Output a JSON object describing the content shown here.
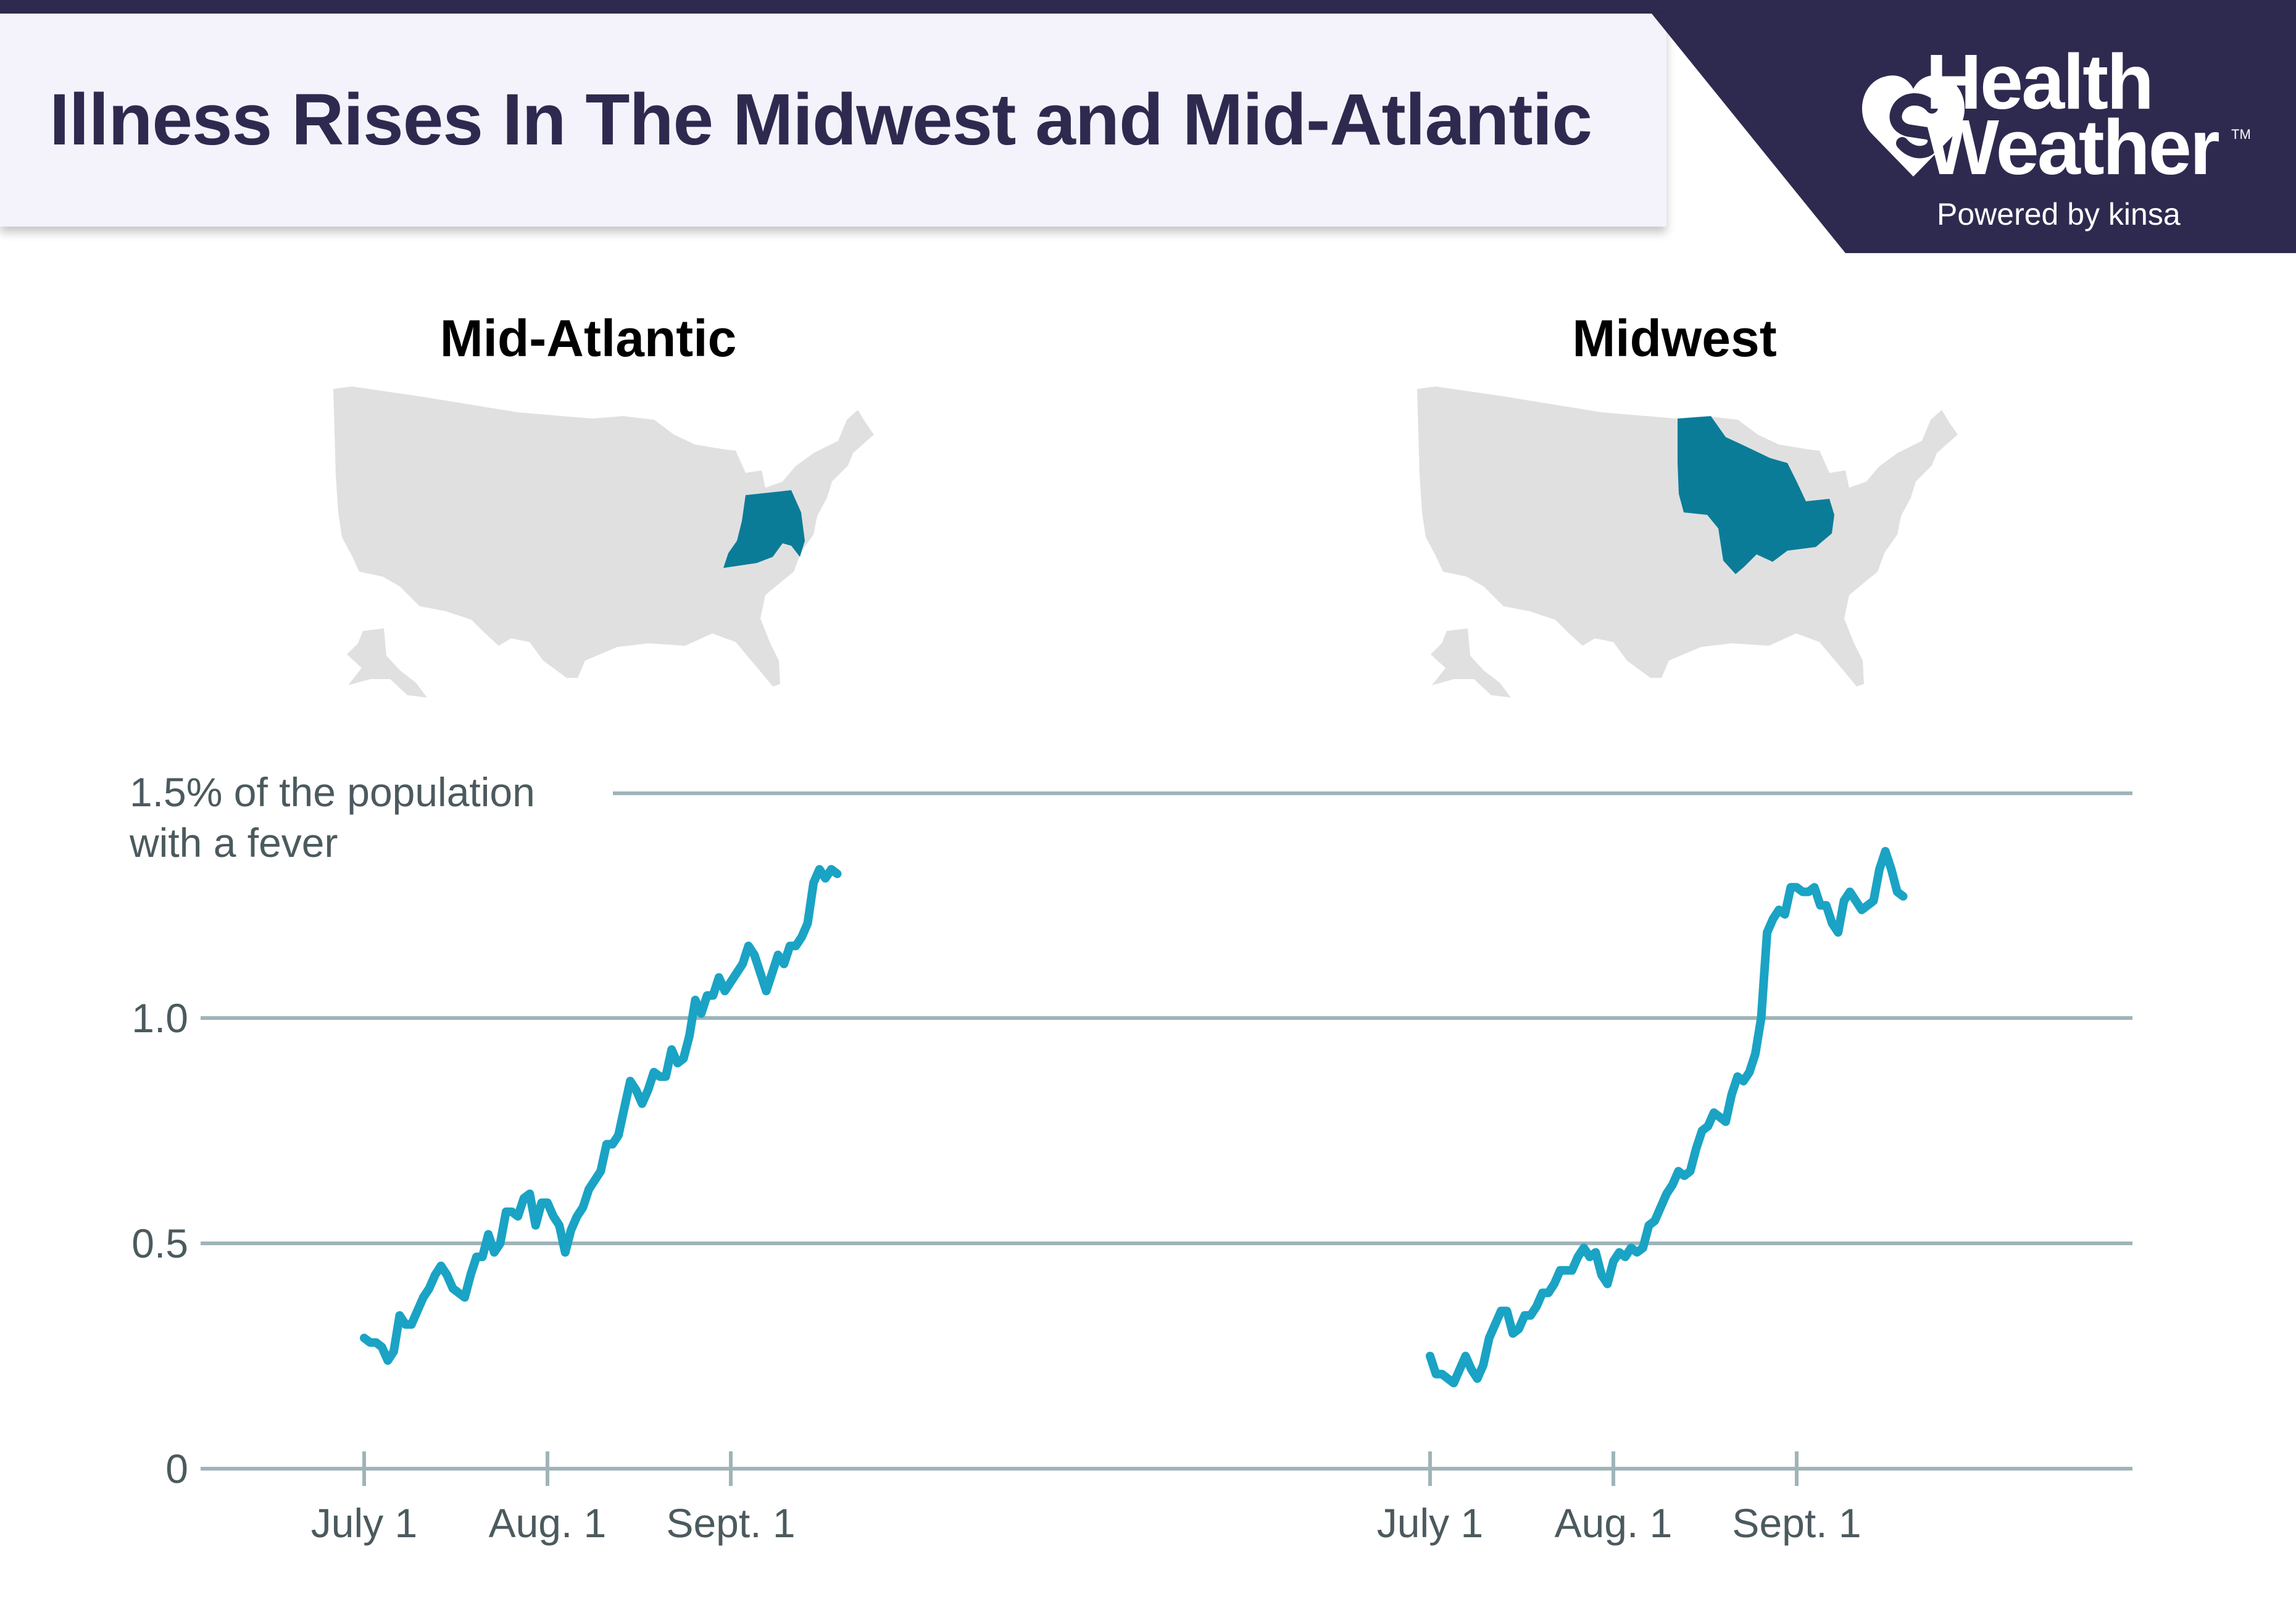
{
  "header": {
    "title": "Illness Rises In The Midwest and Mid-Atlantic",
    "brand_line1": "Health",
    "brand_line2": "Weather",
    "brand_tm": "TM",
    "brand_powered": "Powered by kinsa"
  },
  "colors": {
    "header_dark": "#2e2a4f",
    "banner_bg": "#f4f3fb",
    "line": "#1aa3c4",
    "highlight": "#0b7c98",
    "map_gray": "#e0e0e0",
    "grid": "#9fb4b9",
    "axis_text": "#4b5a5e"
  },
  "icons": {
    "brand": "heart-logo-icon",
    "maps": "us-map-icon"
  },
  "chart_data": [
    {
      "type": "line",
      "title": "Mid-Atlantic",
      "highlighted_region": "Mid-Atlantic",
      "ylim": [
        0,
        1.5
      ],
      "yticks": [
        {
          "value": 0,
          "label": "0"
        },
        {
          "value": 0.5,
          "label": "0.5"
        },
        {
          "value": 1.0,
          "label": "1.0"
        }
      ],
      "ytop_label": [
        "1.5% of the population",
        "with a fever"
      ],
      "xticks": [
        {
          "day": 0,
          "label": "July 1"
        },
        {
          "day": 31,
          "label": "Aug. 1"
        },
        {
          "day": 62,
          "label": "Sept. 1"
        }
      ],
      "series": [
        {
          "values": [
            [
              0,
              0.29
            ],
            [
              1,
              0.28
            ],
            [
              2,
              0.28
            ],
            [
              3,
              0.27
            ],
            [
              4,
              0.24
            ],
            [
              5,
              0.26
            ],
            [
              6,
              0.34
            ],
            [
              7,
              0.32
            ],
            [
              8,
              0.32
            ],
            [
              9,
              0.35
            ],
            [
              10,
              0.38
            ],
            [
              11,
              0.4
            ],
            [
              12,
              0.43
            ],
            [
              13,
              0.45
            ],
            [
              14,
              0.43
            ],
            [
              15,
              0.4
            ],
            [
              16,
              0.39
            ],
            [
              17,
              0.38
            ],
            [
              18,
              0.43
            ],
            [
              19,
              0.47
            ],
            [
              20,
              0.47
            ],
            [
              21,
              0.52
            ],
            [
              22,
              0.48
            ],
            [
              23,
              0.5
            ],
            [
              24,
              0.57
            ],
            [
              25,
              0.57
            ],
            [
              26,
              0.56
            ],
            [
              27,
              0.6
            ],
            [
              28,
              0.61
            ],
            [
              29,
              0.54
            ],
            [
              30,
              0.59
            ],
            [
              31,
              0.59
            ],
            [
              32,
              0.56
            ],
            [
              33,
              0.54
            ],
            [
              34,
              0.48
            ],
            [
              35,
              0.53
            ],
            [
              36,
              0.56
            ],
            [
              37,
              0.58
            ],
            [
              38,
              0.62
            ],
            [
              39,
              0.64
            ],
            [
              40,
              0.66
            ],
            [
              41,
              0.72
            ],
            [
              42,
              0.72
            ],
            [
              43,
              0.74
            ],
            [
              44,
              0.8
            ],
            [
              45,
              0.86
            ],
            [
              46,
              0.84
            ],
            [
              47,
              0.81
            ],
            [
              48,
              0.84
            ],
            [
              49,
              0.88
            ],
            [
              50,
              0.87
            ],
            [
              51,
              0.87
            ],
            [
              52,
              0.93
            ],
            [
              53,
              0.9
            ],
            [
              54,
              0.91
            ],
            [
              55,
              0.96
            ],
            [
              56,
              1.04
            ],
            [
              57,
              1.01
            ],
            [
              58,
              1.05
            ],
            [
              59,
              1.05
            ],
            [
              60,
              1.09
            ],
            [
              61,
              1.06
            ],
            [
              62,
              1.08
            ],
            [
              63,
              1.1
            ],
            [
              64,
              1.12
            ],
            [
              65,
              1.16
            ],
            [
              66,
              1.14
            ],
            [
              67,
              1.1
            ],
            [
              68,
              1.06
            ],
            [
              69,
              1.1
            ],
            [
              70,
              1.14
            ],
            [
              71,
              1.12
            ],
            [
              72,
              1.16
            ],
            [
              73,
              1.16
            ],
            [
              74,
              1.18
            ],
            [
              75,
              1.21
            ],
            [
              76,
              1.3
            ],
            [
              77,
              1.33
            ],
            [
              78,
              1.31
            ],
            [
              79,
              1.33
            ],
            [
              80,
              1.32
            ]
          ]
        }
      ]
    },
    {
      "type": "line",
      "title": "Midwest",
      "highlighted_region": "Midwest",
      "ylim": [
        0,
        1.5
      ],
      "yticks": [
        {
          "value": 0,
          "label": "0"
        },
        {
          "value": 0.5,
          "label": "0.5"
        },
        {
          "value": 1.0,
          "label": "1.0"
        }
      ],
      "xticks": [
        {
          "day": 0,
          "label": "July 1"
        },
        {
          "day": 31,
          "label": "Aug. 1"
        },
        {
          "day": 62,
          "label": "Sept. 1"
        }
      ],
      "series": [
        {
          "values": [
            [
              0,
              0.25
            ],
            [
              1,
              0.21
            ],
            [
              2,
              0.21
            ],
            [
              3,
              0.2
            ],
            [
              4,
              0.19
            ],
            [
              5,
              0.22
            ],
            [
              6,
              0.25
            ],
            [
              7,
              0.22
            ],
            [
              8,
              0.2
            ],
            [
              9,
              0.23
            ],
            [
              10,
              0.29
            ],
            [
              11,
              0.32
            ],
            [
              12,
              0.35
            ],
            [
              13,
              0.35
            ],
            [
              14,
              0.3
            ],
            [
              15,
              0.31
            ],
            [
              16,
              0.34
            ],
            [
              17,
              0.34
            ],
            [
              18,
              0.36
            ],
            [
              19,
              0.39
            ],
            [
              20,
              0.39
            ],
            [
              21,
              0.41
            ],
            [
              22,
              0.44
            ],
            [
              23,
              0.44
            ],
            [
              24,
              0.44
            ],
            [
              25,
              0.47
            ],
            [
              26,
              0.49
            ],
            [
              27,
              0.47
            ],
            [
              28,
              0.48
            ],
            [
              29,
              0.43
            ],
            [
              30,
              0.41
            ],
            [
              31,
              0.46
            ],
            [
              32,
              0.48
            ],
            [
              33,
              0.47
            ],
            [
              34,
              0.49
            ],
            [
              35,
              0.48
            ],
            [
              36,
              0.49
            ],
            [
              37,
              0.54
            ],
            [
              38,
              0.55
            ],
            [
              39,
              0.58
            ],
            [
              40,
              0.61
            ],
            [
              41,
              0.63
            ],
            [
              42,
              0.66
            ],
            [
              43,
              0.65
            ],
            [
              44,
              0.66
            ],
            [
              45,
              0.71
            ],
            [
              46,
              0.75
            ],
            [
              47,
              0.76
            ],
            [
              48,
              0.79
            ],
            [
              49,
              0.78
            ],
            [
              50,
              0.77
            ],
            [
              51,
              0.83
            ],
            [
              52,
              0.87
            ],
            [
              53,
              0.86
            ],
            [
              54,
              0.88
            ],
            [
              55,
              0.92
            ],
            [
              56,
              1.0
            ],
            [
              57,
              1.19
            ],
            [
              58,
              1.22
            ],
            [
              59,
              1.24
            ],
            [
              60,
              1.23
            ],
            [
              61,
              1.29
            ],
            [
              62,
              1.29
            ],
            [
              63,
              1.28
            ],
            [
              64,
              1.28
            ],
            [
              65,
              1.29
            ],
            [
              66,
              1.25
            ],
            [
              67,
              1.25
            ],
            [
              68,
              1.21
            ],
            [
              69,
              1.19
            ],
            [
              70,
              1.26
            ],
            [
              71,
              1.28
            ],
            [
              72,
              1.26
            ],
            [
              73,
              1.24
            ],
            [
              74,
              1.25
            ],
            [
              75,
              1.26
            ],
            [
              76,
              1.33
            ],
            [
              77,
              1.37
            ],
            [
              78,
              1.33
            ],
            [
              79,
              1.28
            ],
            [
              80,
              1.27
            ]
          ]
        }
      ]
    }
  ]
}
